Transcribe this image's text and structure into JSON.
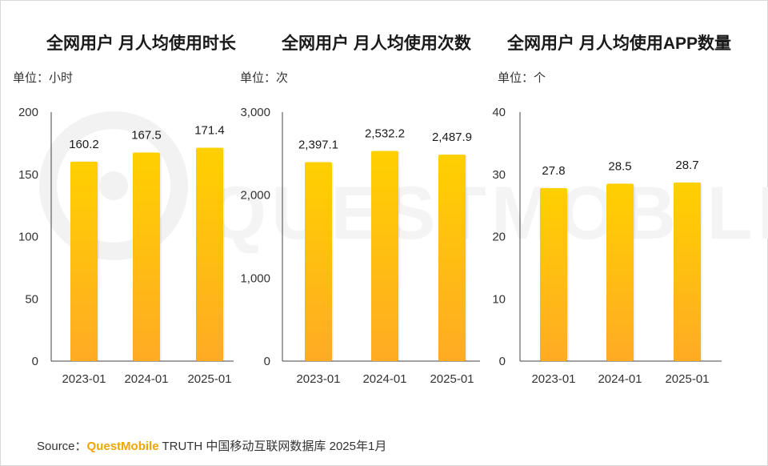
{
  "source": {
    "prefix": "Source：",
    "brand": "QuestMobile",
    "rest": " TRUTH 中国移动互联网数据库 2025年1月"
  },
  "colors": {
    "bar_top": "#ffd000",
    "bar_bottom": "#ffab24",
    "axis": "#444444"
  },
  "chart_data": [
    {
      "type": "bar",
      "title": "全网用户 月人均使用时长",
      "unit": "单位：小时",
      "categories": [
        "2023-01",
        "2024-01",
        "2025-01"
      ],
      "values": [
        160.2,
        167.5,
        171.4
      ],
      "value_labels": [
        "160.2",
        "167.5",
        "171.4"
      ],
      "ylim": [
        0,
        200
      ],
      "yticks": [
        0,
        50,
        100,
        150,
        200
      ],
      "ytick_labels": [
        "0",
        "50",
        "100",
        "150",
        "200"
      ]
    },
    {
      "type": "bar",
      "title": "全网用户 月人均使用次数",
      "unit": "单位：次",
      "categories": [
        "2023-01",
        "2024-01",
        "2025-01"
      ],
      "values": [
        2397.1,
        2532.2,
        2487.9
      ],
      "value_labels": [
        "2,397.1",
        "2,532.2",
        "2,487.9"
      ],
      "ylim": [
        0,
        3000
      ],
      "yticks": [
        0,
        1000,
        2000,
        3000
      ],
      "ytick_labels": [
        "0",
        "1,000",
        "2,000",
        "3,000"
      ]
    },
    {
      "type": "bar",
      "title": "全网用户 月人均使用APP数量",
      "unit": "单位：个",
      "categories": [
        "2023-01",
        "2024-01",
        "2025-01"
      ],
      "values": [
        27.8,
        28.5,
        28.7
      ],
      "value_labels": [
        "27.8",
        "28.5",
        "28.7"
      ],
      "ylim": [
        0,
        40
      ],
      "yticks": [
        0,
        10,
        20,
        30,
        40
      ],
      "ytick_labels": [
        "0",
        "10",
        "20",
        "30",
        "40"
      ]
    }
  ]
}
